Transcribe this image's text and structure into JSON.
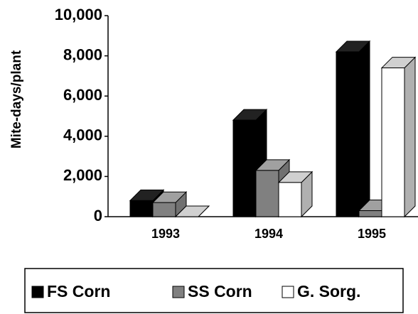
{
  "chart_data": {
    "type": "bar3d",
    "y_label": "Mite-days/plant",
    "categories": [
      "1993",
      "1994",
      "1995"
    ],
    "series": [
      {
        "name": "FS Corn",
        "color": "#000000",
        "values": [
          800,
          4800,
          8200
        ]
      },
      {
        "name": "SS Corn",
        "color": "#808080",
        "values": [
          700,
          2300,
          300
        ]
      },
      {
        "name": "G. Sorg.",
        "color": "#ffffff",
        "values": [
          0,
          1700,
          7400
        ]
      }
    ],
    "ylim": [
      0,
      10000
    ],
    "yticks": [
      0,
      {
        "value": 2000,
        "label": "2,000"
      },
      {
        "value": 4000,
        "label": "4,000"
      },
      {
        "value": 6000,
        "label": "6,000"
      },
      {
        "value": 8000,
        "label": "8,000"
      },
      {
        "value": 10000,
        "label": "10,000"
      }
    ]
  }
}
